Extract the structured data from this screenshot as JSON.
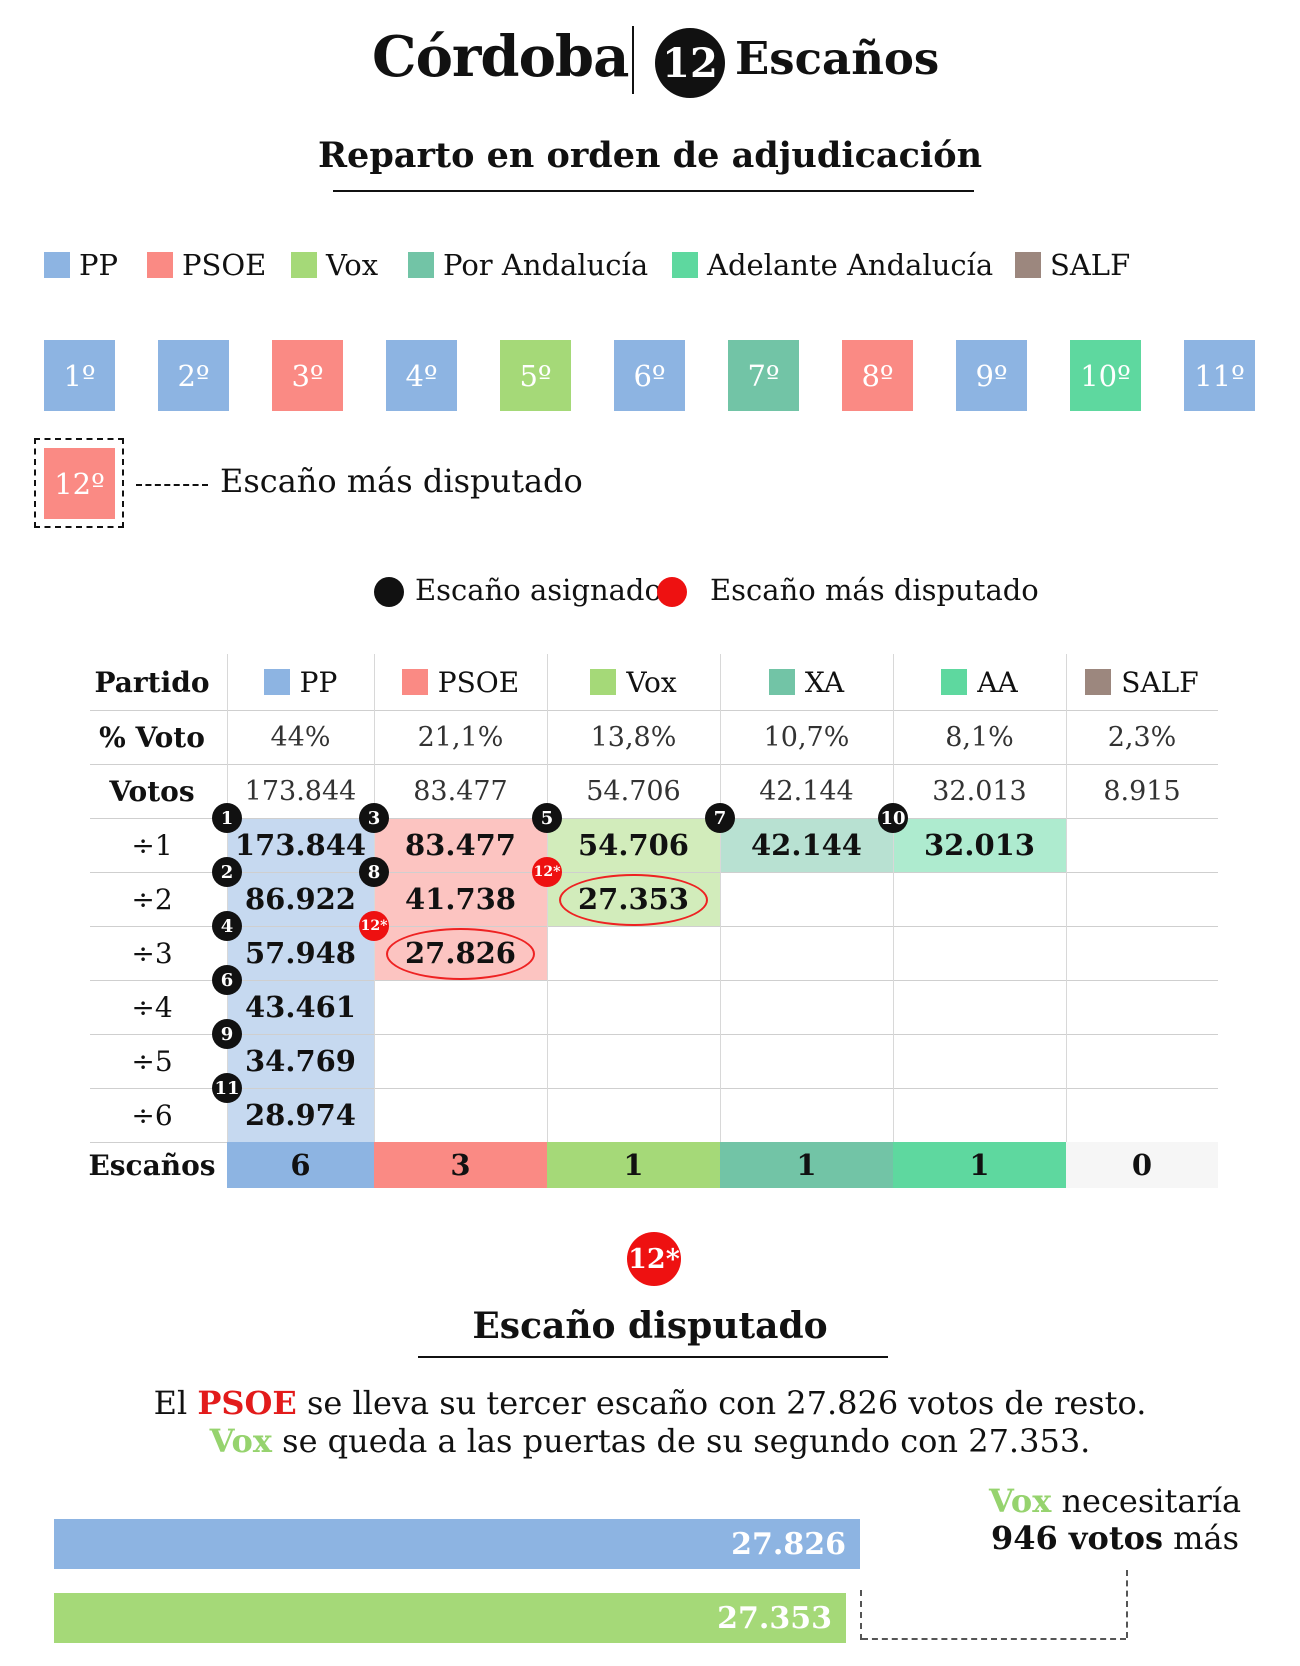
{
  "header": {
    "city": "Córdoba",
    "seats": "12",
    "seats_label": "Escaños"
  },
  "subtitle": "Reparto en orden de adjudicación",
  "colors": {
    "PP": "#8db4e2",
    "PSOE": "#fa8a84",
    "Vox": "#a5d978",
    "XA": "#72c4a6",
    "AA": "#5ed89f",
    "SALF": "#9c877e",
    "disputed_red": "#ee1111"
  },
  "legend": [
    {
      "label": "PP",
      "color": "#8db4e2"
    },
    {
      "label": "PSOE",
      "color": "#fa8a84"
    },
    {
      "label": "Vox",
      "color": "#a5d978"
    },
    {
      "label": "Por Andalucía",
      "color": "#72c4a6"
    },
    {
      "label": "Adelante Andalucía",
      "color": "#5ed89f"
    },
    {
      "label": "SALF",
      "color": "#9c877e"
    }
  ],
  "seat_order": [
    {
      "label": "1º",
      "party": "PP"
    },
    {
      "label": "2º",
      "party": "PP"
    },
    {
      "label": "3º",
      "party": "PSOE"
    },
    {
      "label": "4º",
      "party": "PP"
    },
    {
      "label": "5º",
      "party": "Vox"
    },
    {
      "label": "6º",
      "party": "PP"
    },
    {
      "label": "7º",
      "party": "XA"
    },
    {
      "label": "8º",
      "party": "PSOE"
    },
    {
      "label": "9º",
      "party": "PP"
    },
    {
      "label": "10º",
      "party": "AA"
    },
    {
      "label": "11º",
      "party": "PP"
    },
    {
      "label": "12º",
      "party": "PSOE"
    }
  ],
  "seat12_note": "Escaño más disputado",
  "dot_legend": {
    "assigned": "Escaño asignado",
    "disputed": "Escaño más disputado"
  },
  "chart_data": {
    "type": "table",
    "title": "Reparto en orden de adjudicación",
    "row_labels": {
      "party": "Partido",
      "pct": "% Voto",
      "votes": "Votos",
      "seats": "Escaños"
    },
    "divisors": [
      "÷1",
      "÷2",
      "÷3",
      "÷4",
      "÷5",
      "÷6"
    ],
    "parties": [
      {
        "name": "PP",
        "pct": "44%",
        "votes": "173.844",
        "quotients": [
          "173.844",
          "86.922",
          "57.948",
          "43.461",
          "34.769",
          "28.974"
        ],
        "seat_numbers": [
          "1",
          "2",
          "4",
          "6",
          "9",
          "11"
        ],
        "seats": "6"
      },
      {
        "name": "PSOE",
        "pct": "21,1%",
        "votes": "83.477",
        "quotients": [
          "83.477",
          "41.738",
          "27.826"
        ],
        "seat_numbers": [
          "3",
          "8",
          "12*"
        ],
        "seats": "3"
      },
      {
        "name": "Vox",
        "pct": "13,8%",
        "votes": "54.706",
        "quotients": [
          "54.706",
          "27.353"
        ],
        "seat_numbers": [
          "5",
          "12*"
        ],
        "seats": "1"
      },
      {
        "name": "XA",
        "pct": "10,7%",
        "votes": "42.144",
        "quotients": [
          "42.144"
        ],
        "seat_numbers": [
          "7"
        ],
        "seats": "1"
      },
      {
        "name": "AA",
        "pct": "8,1%",
        "votes": "32.013",
        "quotients": [
          "32.013"
        ],
        "seat_numbers": [
          "10"
        ],
        "seats": "1"
      },
      {
        "name": "SALF",
        "pct": "2,3%",
        "votes": "8.915",
        "quotients": [],
        "seat_numbers": [],
        "seats": "0"
      }
    ],
    "comparison": {
      "type": "bar",
      "bars": [
        {
          "party": "PSOE",
          "value": 27826,
          "label": "27.826"
        },
        {
          "party": "Vox",
          "value": 27353,
          "label": "27.353"
        }
      ],
      "difference": 946
    }
  },
  "disputed": {
    "badge": "12*",
    "title": "Escaño disputado",
    "line1": {
      "a": "El ",
      "party": "PSOE",
      "b": " se lleva su tercer escaño con 27.826 votos de resto."
    },
    "line2": {
      "party": "Vox",
      "b": " se queda a las puertas de su segundo con 27.353."
    },
    "need": {
      "party": "Vox",
      "a": " necesitaría",
      "bold": "946 votos",
      "b": " más"
    }
  }
}
